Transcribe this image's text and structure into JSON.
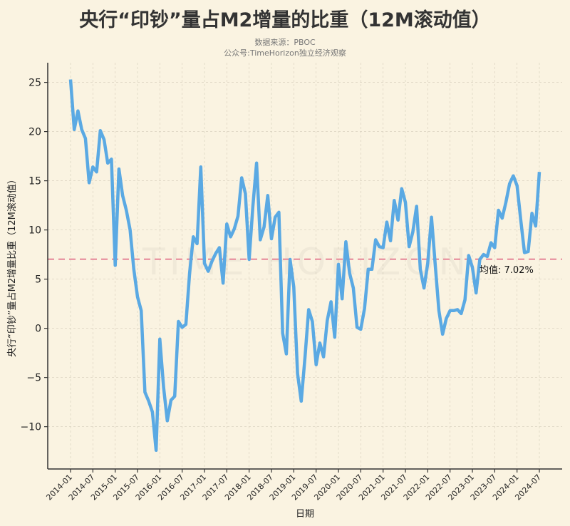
{
  "chart_data": {
    "type": "line",
    "title": "央行“印钞”量占M2增量的比重（12M滚动值）",
    "subtitle_lines": [
      "数据来源：PBOC",
      "公众号:TimeHorizon独立经济观察"
    ],
    "xlabel": "日期",
    "ylabel": "央行“印钞”量占M2增量比重（12M滚动值）",
    "watermark": "TIME HORIZON",
    "ylim": [
      -14.3,
      27
    ],
    "yticks": [
      -10,
      -5,
      0,
      5,
      10,
      15,
      20,
      25
    ],
    "start_month": "2014-01",
    "xtick_labels": [
      "2014-01",
      "2014-07",
      "2015-01",
      "2015-07",
      "2016-01",
      "2016-07",
      "2017-01",
      "2017-07",
      "2018-01",
      "2018-07",
      "2019-01",
      "2019-07",
      "2020-01",
      "2020-07",
      "2021-01",
      "2021-07",
      "2022-01",
      "2022-07",
      "2023-01",
      "2023-07",
      "2024-01",
      "2024-07"
    ],
    "grid": true,
    "mean": {
      "value": 7.02,
      "label": "均值: 7.02%",
      "color": "#e8919f"
    },
    "line_color": "#5aa9e3",
    "values": [
      25.3,
      20.2,
      22.1,
      20.2,
      19.3,
      14.8,
      16.4,
      15.9,
      20.1,
      19.2,
      16.8,
      17.2,
      6.4,
      16.2,
      13.5,
      12.0,
      10.0,
      6.0,
      3.2,
      1.8,
      -6.5,
      -7.4,
      -8.5,
      -12.4,
      -1.1,
      -6.0,
      -9.4,
      -7.3,
      -6.9,
      0.7,
      0.1,
      0.4,
      5.6,
      9.3,
      8.6,
      16.4,
      6.6,
      5.8,
      6.8,
      7.6,
      8.2,
      4.6,
      10.6,
      9.3,
      10.1,
      11.4,
      15.3,
      13.7,
      7.0,
      12.4,
      16.8,
      9.0,
      10.3,
      13.5,
      9.1,
      11.3,
      11.8,
      -0.5,
      -2.6,
      7.0,
      4.2,
      -4.6,
      -7.4,
      -3.0,
      1.9,
      0.7,
      -3.7,
      -1.5,
      -2.9,
      0.8,
      2.7,
      -0.9,
      6.5,
      3.0,
      8.8,
      5.6,
      4.1,
      0.1,
      -0.1,
      2.0,
      6.0,
      6.0,
      9.0,
      8.3,
      8.2,
      10.8,
      8.9,
      13.0,
      11.0,
      14.2,
      12.8,
      8.3,
      9.8,
      12.4,
      6.0,
      4.1,
      6.6,
      11.3,
      6.5,
      1.8,
      -0.6,
      1.0,
      1.8,
      1.8,
      1.9,
      1.5,
      2.9,
      7.4,
      6.2,
      3.6,
      7.0,
      7.5,
      7.3,
      8.7,
      8.2,
      12.0,
      11.2,
      12.8,
      14.7,
      15.5,
      14.5,
      11.0,
      7.7,
      7.8,
      11.7,
      10.4,
      15.9
    ]
  }
}
